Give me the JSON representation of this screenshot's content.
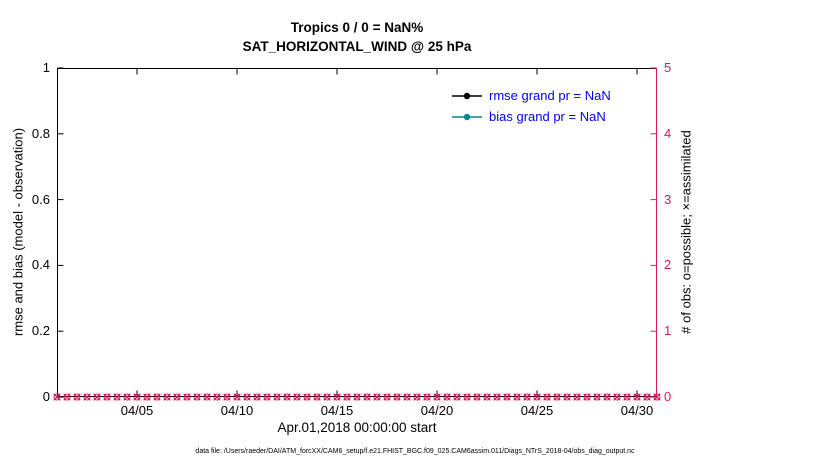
{
  "figure": {
    "title_line1": "Tropics 0 / 0 = NaN%",
    "title_line2": "SAT_HORIZONTAL_WIND @ 25 hPa",
    "xlabel": "Apr.01,2018 00:00:00 start",
    "ylabel_left": "rmse and bias (model - observation)",
    "ylabel_right": "# of obs: o=possible; ×=assimilated",
    "footer": "data file: /Users/raeder/DAI/ATM_forcXX/CAM6_setup/f.e21.FHIST_BGC.f09_025.CAM6assim.011/Diags_NTrS_2018-04/obs_diag_output.nc"
  },
  "chart_data": {
    "type": "line",
    "title": "Tropics 0 / 0 = NaN%",
    "subtitle": "SAT_HORIZONTAL_WIND @ 25 hPa",
    "xlabel": "Apr.01,2018 00:00:00 start",
    "x_start_label": "Apr.01,2018 00:00:00",
    "x_range_days": [
      0,
      30
    ],
    "xtick_days": [
      4,
      9,
      14,
      19,
      24,
      29
    ],
    "xtick_labels": [
      "04/05",
      "04/10",
      "04/15",
      "04/20",
      "04/25",
      "04/30"
    ],
    "ylabel_left": "rmse and bias (model - observation)",
    "ylim_left": [
      0,
      1
    ],
    "yticks_left": [
      0,
      0.2,
      0.4,
      0.6,
      0.8,
      1
    ],
    "ytick_labels_left": [
      "0",
      "0.2",
      "0.4",
      "0.6",
      "0.8",
      "1"
    ],
    "ylabel_right": "# of obs: o=possible; ×=assimilated",
    "ylim_right": [
      0,
      5
    ],
    "yticks_right": [
      0,
      1,
      2,
      3,
      4,
      5
    ],
    "ytick_labels_right": [
      "0",
      "1",
      "2",
      "3",
      "4",
      "5"
    ],
    "grid": false,
    "legend_position": "upper-right-inside, no box",
    "series": [
      {
        "name": "rmse",
        "axis": "left",
        "color": "#000000",
        "marker": "dot",
        "legend": "rmse grand pr = NaN",
        "values": "NaN (no data plotted)"
      },
      {
        "name": "bias",
        "axis": "left",
        "color": "#008b8b",
        "marker": "dot",
        "legend": "bias grand pr = NaN",
        "values": "NaN (no data plotted)"
      },
      {
        "name": "obs-possible",
        "axis": "right",
        "color": "#d81b60",
        "marker": "o",
        "constant_value": 0,
        "interval_days": 0.5
      },
      {
        "name": "obs-assimilated",
        "axis": "right",
        "color": "#d81b60",
        "marker": "x",
        "constant_value": 0,
        "interval_days": 0.5
      }
    ],
    "colors": {
      "axis": "#000000",
      "right_axis": "#d81b60",
      "obs_markers": "#d81b60",
      "rmse": "#000000",
      "bias": "#008b8b",
      "legend_text": "#0000ff"
    }
  }
}
